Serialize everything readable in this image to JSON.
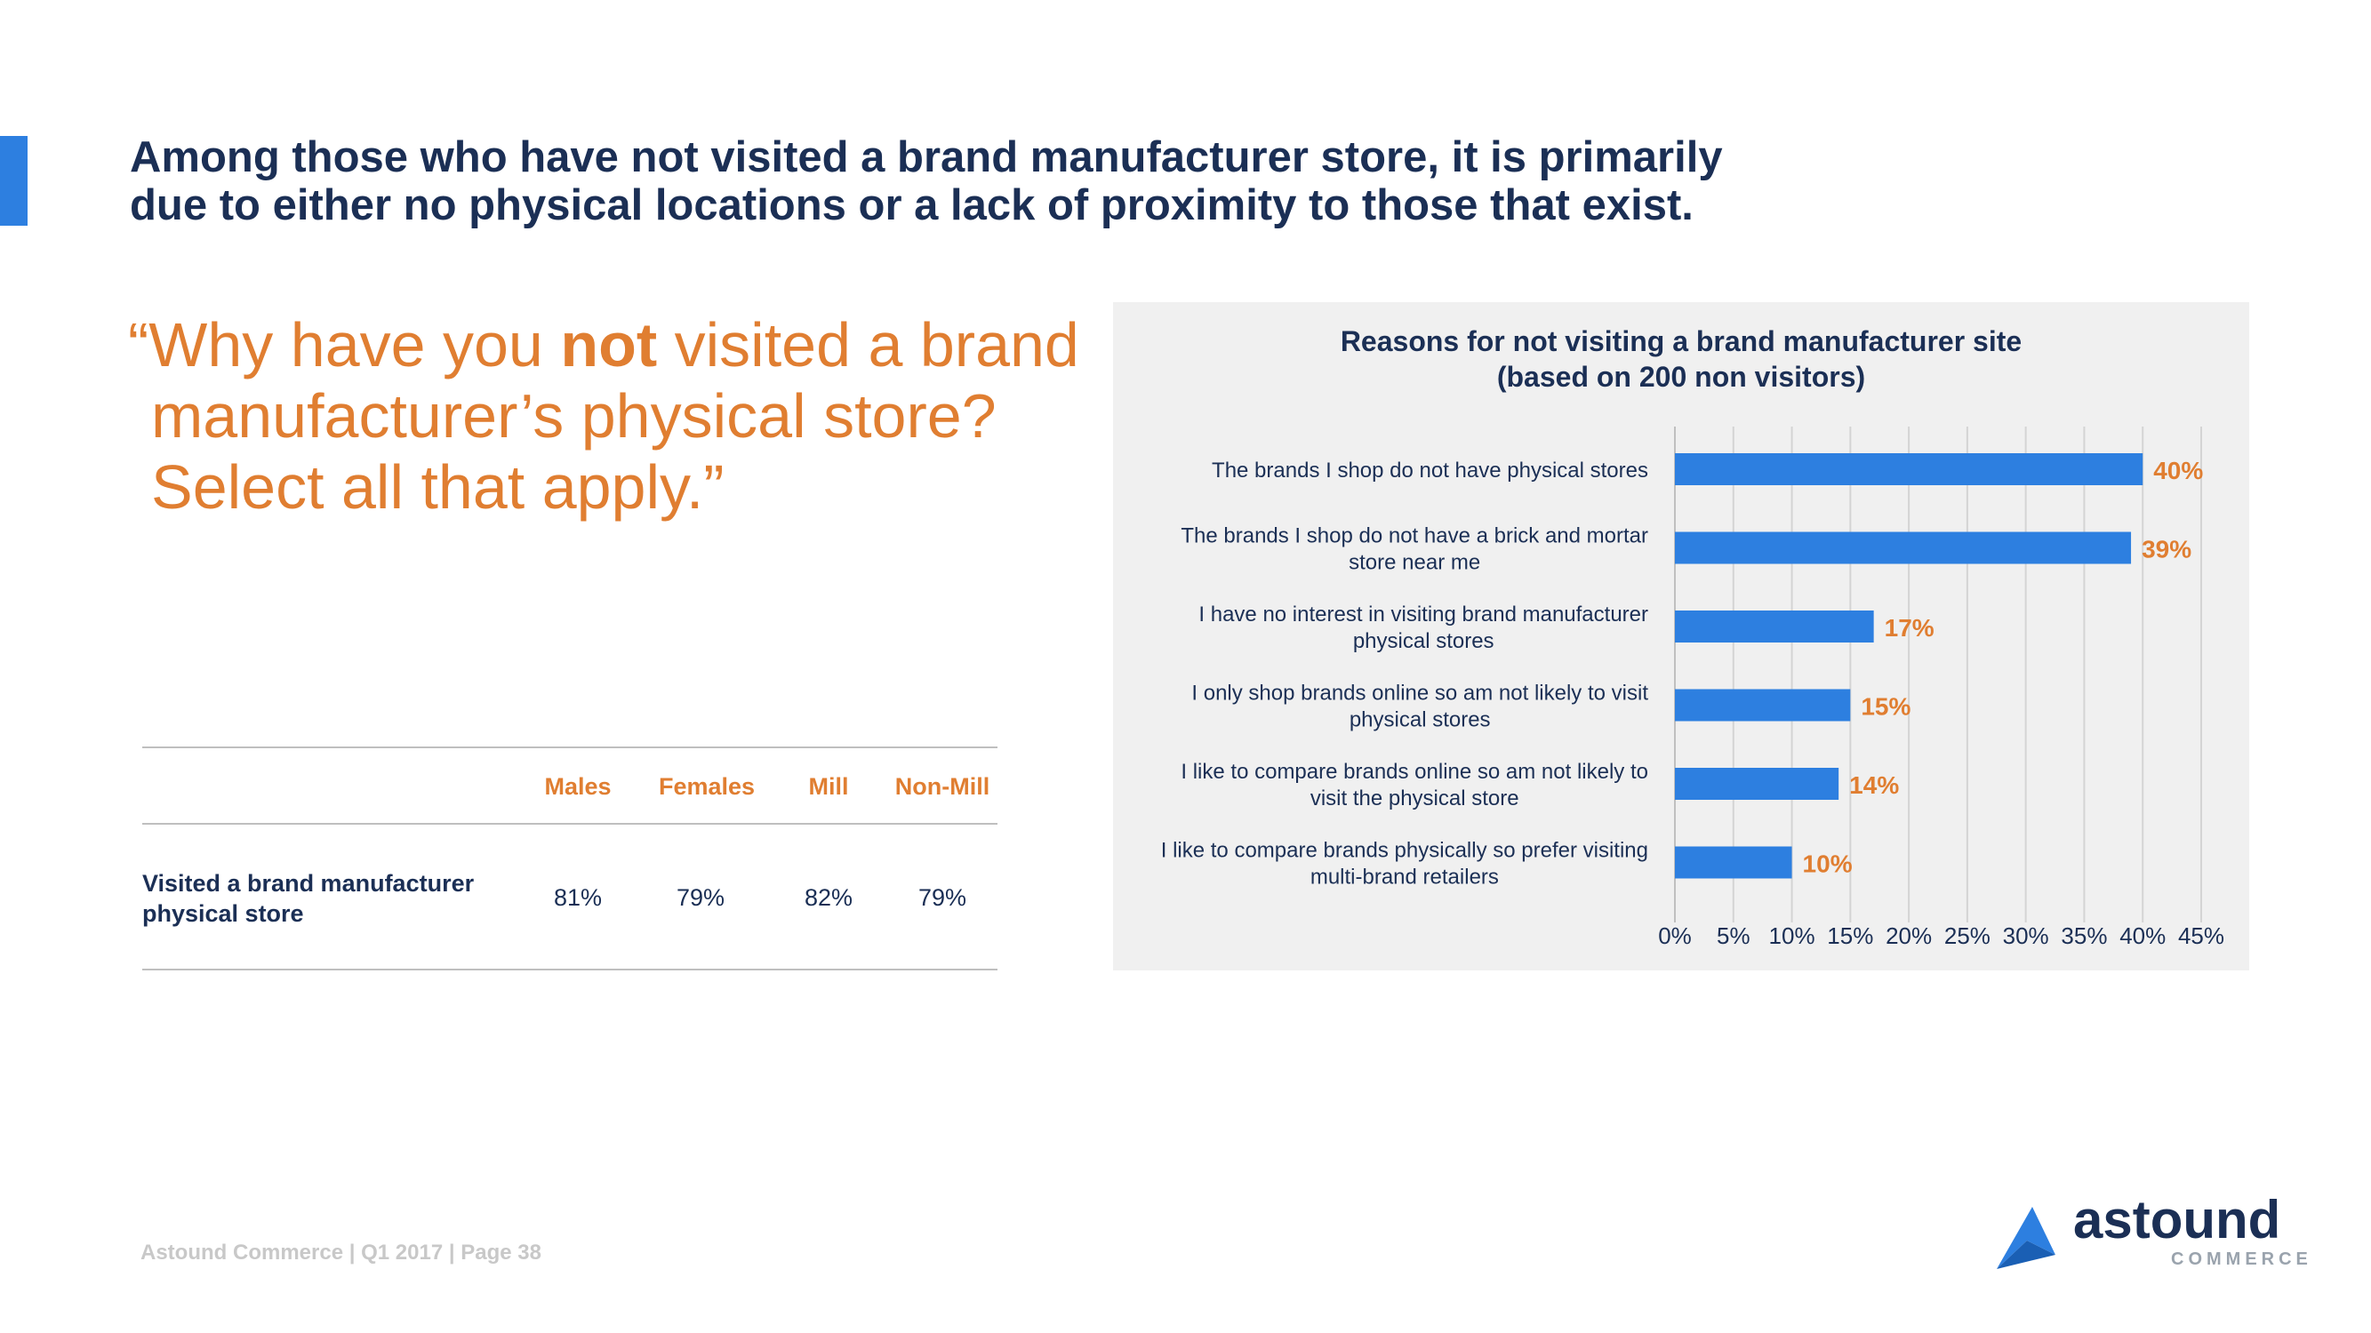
{
  "headline": {
    "line1": "Among those who have not visited a brand manufacturer store, it is primarily",
    "line2": "due to either no physical locations or a lack of proximity to those that exist."
  },
  "question": {
    "line1_pre": "“Why have you ",
    "line1_bold": "not",
    "line1_post": " visited a brand",
    "line2": "manufacturer’s physical store?",
    "line3": "Select all that apply.”"
  },
  "table": {
    "headers": [
      "Males",
      "Females",
      "Mill",
      "Non-Mill"
    ],
    "row_label_line1": "Visited a brand manufacturer",
    "row_label_line2": "physical store",
    "values": [
      "81%",
      "79%",
      "82%",
      "79%"
    ]
  },
  "chart_data": {
    "type": "bar",
    "orientation": "horizontal",
    "title": "Reasons for not visiting a brand manufacturer site",
    "subtitle": "(based on 200 non visitors)",
    "categories": [
      [
        "The brands I shop do not have physical stores"
      ],
      [
        "The brands I shop do not have a brick and mortar",
        "store near me"
      ],
      [
        "I have no interest in visiting brand manufacturer",
        "physical stores"
      ],
      [
        "I only shop brands online so am not likely to visit",
        "physical stores"
      ],
      [
        "I like to compare brands online so am not likely to",
        "visit the physical store"
      ],
      [
        "I like to compare brands physically so prefer visiting",
        "multi-brand retailers"
      ]
    ],
    "values": [
      40,
      39,
      17,
      15,
      14,
      10
    ],
    "data_labels": [
      "40%",
      "39%",
      "17%",
      "15%",
      "14%",
      "10%"
    ],
    "x_ticks": [
      "0%",
      "5%",
      "10%",
      "15%",
      "20%",
      "25%",
      "30%",
      "35%",
      "40%",
      "45%"
    ],
    "xlim": [
      0,
      45
    ],
    "grid": true,
    "bar_color": "#2d7fe0",
    "label_color": "#e07e31"
  },
  "footer": "Astound Commerce | Q1 2017 | Page 38",
  "logo": {
    "word": "astound",
    "sub": "COMMERCE"
  }
}
